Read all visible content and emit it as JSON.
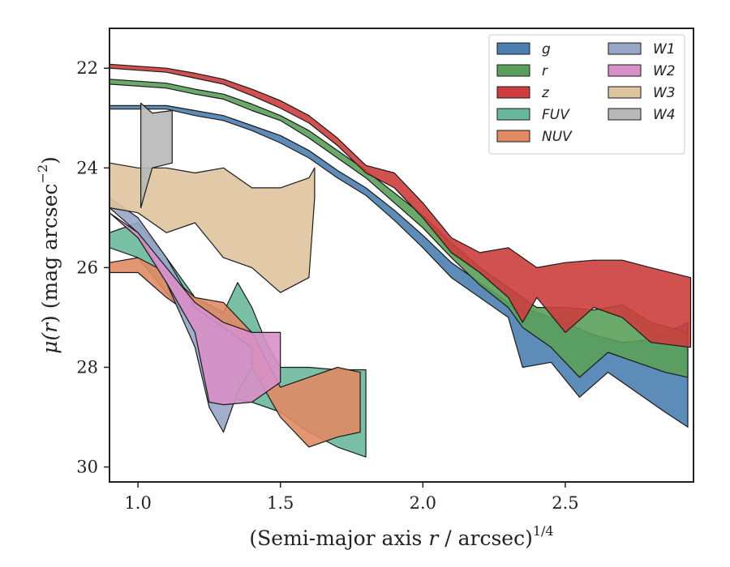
{
  "chart_data": {
    "type": "area",
    "xlabel": "(Semi-major axis r / arcsec)",
    "xlabel_main": "(Semi-major axis ",
    "xlabel_var": "r",
    "xlabel_rest": " / arcsec)",
    "xlabel_exp": "1/4",
    "ylabel_main": "μ(",
    "ylabel_var": "r",
    "ylabel_rest": ") (mag arcsec",
    "ylabel_exp": "−2",
    "ylabel_close": ")",
    "xlim": [
      0.9,
      2.95
    ],
    "ylim": [
      30.3,
      21.2
    ],
    "y_inverted": true,
    "x_ticks": [
      1.0,
      1.5,
      2.0,
      2.5
    ],
    "x_tick_labels": [
      "1.0",
      "1.5",
      "2.0",
      "2.5"
    ],
    "y_ticks": [
      22,
      24,
      26,
      28,
      30
    ],
    "y_tick_labels": [
      "22",
      "24",
      "26",
      "28",
      "30"
    ],
    "grid": false,
    "legend_position": "top-right",
    "legend_columns": 2,
    "series": [
      {
        "name": "g",
        "color": "#4c7fb0",
        "upper": [
          [
            0.9,
            22.75
          ],
          [
            1.1,
            22.75
          ],
          [
            1.2,
            22.85
          ],
          [
            1.3,
            22.95
          ],
          [
            1.4,
            23.15
          ],
          [
            1.5,
            23.35
          ],
          [
            1.6,
            23.65
          ],
          [
            1.7,
            24.05
          ],
          [
            1.8,
            24.4
          ],
          [
            1.9,
            24.85
          ],
          [
            2.0,
            25.35
          ],
          [
            2.1,
            25.9
          ],
          [
            2.2,
            26.3
          ],
          [
            2.3,
            26.7
          ],
          [
            2.4,
            26.9
          ],
          [
            2.5,
            27.1
          ],
          [
            2.6,
            27.35
          ],
          [
            2.7,
            27.5
          ],
          [
            2.8,
            27.45
          ],
          [
            2.93,
            27.1
          ]
        ],
        "lower": [
          [
            0.9,
            22.82
          ],
          [
            1.1,
            22.82
          ],
          [
            1.2,
            22.95
          ],
          [
            1.3,
            23.05
          ],
          [
            1.4,
            23.25
          ],
          [
            1.5,
            23.5
          ],
          [
            1.6,
            23.8
          ],
          [
            1.7,
            24.2
          ],
          [
            1.8,
            24.55
          ],
          [
            1.9,
            25.05
          ],
          [
            2.0,
            25.6
          ],
          [
            2.1,
            26.2
          ],
          [
            2.2,
            26.6
          ],
          [
            2.3,
            27.0
          ],
          [
            2.35,
            28.0
          ],
          [
            2.45,
            27.9
          ],
          [
            2.55,
            28.6
          ],
          [
            2.65,
            28.1
          ],
          [
            2.75,
            28.5
          ],
          [
            2.85,
            28.9
          ],
          [
            2.93,
            29.2
          ]
        ]
      },
      {
        "name": "r",
        "color": "#5aa05a",
        "upper": [
          [
            0.9,
            22.22
          ],
          [
            1.1,
            22.3
          ],
          [
            1.2,
            22.42
          ],
          [
            1.3,
            22.52
          ],
          [
            1.4,
            22.72
          ],
          [
            1.5,
            22.95
          ],
          [
            1.6,
            23.25
          ],
          [
            1.7,
            23.65
          ],
          [
            1.8,
            24.05
          ],
          [
            1.9,
            24.5
          ],
          [
            2.0,
            24.95
          ],
          [
            2.1,
            25.5
          ],
          [
            2.2,
            26.0
          ],
          [
            2.3,
            26.4
          ],
          [
            2.4,
            26.8
          ],
          [
            2.5,
            26.8
          ],
          [
            2.6,
            26.85
          ],
          [
            2.7,
            26.75
          ],
          [
            2.8,
            27.1
          ],
          [
            2.93,
            27.3
          ]
        ],
        "lower": [
          [
            0.9,
            22.32
          ],
          [
            1.1,
            22.4
          ],
          [
            1.2,
            22.52
          ],
          [
            1.3,
            22.62
          ],
          [
            1.4,
            22.85
          ],
          [
            1.5,
            23.05
          ],
          [
            1.6,
            23.4
          ],
          [
            1.7,
            23.8
          ],
          [
            1.8,
            24.2
          ],
          [
            1.9,
            24.7
          ],
          [
            2.0,
            25.2
          ],
          [
            2.1,
            25.8
          ],
          [
            2.2,
            26.35
          ],
          [
            2.3,
            26.8
          ],
          [
            2.35,
            27.2
          ],
          [
            2.45,
            27.6
          ],
          [
            2.55,
            28.2
          ],
          [
            2.65,
            27.7
          ],
          [
            2.75,
            27.9
          ],
          [
            2.85,
            28.1
          ],
          [
            2.93,
            28.2
          ]
        ]
      },
      {
        "name": "z",
        "color": "#cc3e3e",
        "upper": [
          [
            0.9,
            21.92
          ],
          [
            1.1,
            22.0
          ],
          [
            1.2,
            22.1
          ],
          [
            1.3,
            22.22
          ],
          [
            1.4,
            22.42
          ],
          [
            1.5,
            22.65
          ],
          [
            1.6,
            22.95
          ],
          [
            1.7,
            23.4
          ],
          [
            1.8,
            23.95
          ],
          [
            1.9,
            24.1
          ],
          [
            2.0,
            24.7
          ],
          [
            2.1,
            25.4
          ],
          [
            2.2,
            25.7
          ],
          [
            2.3,
            25.6
          ],
          [
            2.4,
            26.0
          ],
          [
            2.5,
            25.9
          ],
          [
            2.6,
            25.85
          ],
          [
            2.7,
            25.85
          ],
          [
            2.8,
            26.0
          ],
          [
            2.94,
            26.2
          ]
        ],
        "lower": [
          [
            0.9,
            22.0
          ],
          [
            1.1,
            22.08
          ],
          [
            1.2,
            22.2
          ],
          [
            1.3,
            22.32
          ],
          [
            1.4,
            22.55
          ],
          [
            1.5,
            22.8
          ],
          [
            1.6,
            23.1
          ],
          [
            1.7,
            23.55
          ],
          [
            1.8,
            24.1
          ],
          [
            1.9,
            24.4
          ],
          [
            2.0,
            25.0
          ],
          [
            2.1,
            25.7
          ],
          [
            2.2,
            26.1
          ],
          [
            2.3,
            26.6
          ],
          [
            2.35,
            27.1
          ],
          [
            2.4,
            26.6
          ],
          [
            2.5,
            27.3
          ],
          [
            2.6,
            26.8
          ],
          [
            2.7,
            27.0
          ],
          [
            2.8,
            27.5
          ],
          [
            2.94,
            27.6
          ]
        ]
      },
      {
        "name": "FUV",
        "color": "#6ab89c",
        "upper": [
          [
            0.9,
            25.3
          ],
          [
            1.0,
            25.1
          ],
          [
            1.1,
            25.8
          ],
          [
            1.2,
            26.6
          ],
          [
            1.3,
            26.9
          ],
          [
            1.35,
            26.3
          ],
          [
            1.4,
            26.8
          ],
          [
            1.45,
            27.5
          ],
          [
            1.5,
            28.0
          ],
          [
            1.6,
            28.0
          ],
          [
            1.7,
            28.05
          ],
          [
            1.8,
            28.05
          ]
        ],
        "lower": [
          [
            0.9,
            25.6
          ],
          [
            1.0,
            25.8
          ],
          [
            1.1,
            26.5
          ],
          [
            1.2,
            27.2
          ],
          [
            1.3,
            28.6
          ],
          [
            1.4,
            28.7
          ],
          [
            1.5,
            28.9
          ],
          [
            1.6,
            29.3
          ],
          [
            1.7,
            29.6
          ],
          [
            1.8,
            29.8
          ]
        ]
      },
      {
        "name": "NUV",
        "color": "#e08a65",
        "upper": [
          [
            0.9,
            25.9
          ],
          [
            1.0,
            25.8
          ],
          [
            1.1,
            26.1
          ],
          [
            1.2,
            26.6
          ],
          [
            1.3,
            26.7
          ],
          [
            1.4,
            27.3
          ],
          [
            1.5,
            28.4
          ],
          [
            1.6,
            28.2
          ],
          [
            1.7,
            28.0
          ],
          [
            1.78,
            28.1
          ]
        ],
        "lower": [
          [
            0.9,
            26.1
          ],
          [
            1.0,
            26.1
          ],
          [
            1.1,
            26.6
          ],
          [
            1.2,
            27.0
          ],
          [
            1.3,
            27.3
          ],
          [
            1.4,
            28.0
          ],
          [
            1.5,
            29.0
          ],
          [
            1.6,
            29.6
          ],
          [
            1.7,
            29.4
          ],
          [
            1.78,
            29.3
          ]
        ]
      },
      {
        "name": "W1",
        "color": "#97a6c8",
        "upper": [
          [
            0.9,
            24.6
          ],
          [
            1.0,
            25.0
          ],
          [
            1.1,
            25.8
          ],
          [
            1.2,
            26.8
          ],
          [
            1.3,
            27.2
          ],
          [
            1.4,
            27.6
          ]
        ],
        "lower": [
          [
            0.9,
            24.8
          ],
          [
            1.0,
            25.3
          ],
          [
            1.1,
            26.3
          ],
          [
            1.2,
            27.6
          ],
          [
            1.25,
            28.8
          ],
          [
            1.3,
            29.3
          ],
          [
            1.35,
            28.5
          ],
          [
            1.4,
            28.0
          ]
        ]
      },
      {
        "name": "W2",
        "color": "#d890c8",
        "upper": [
          [
            0.9,
            24.9
          ],
          [
            1.0,
            25.3
          ],
          [
            1.1,
            26.0
          ],
          [
            1.2,
            26.7
          ],
          [
            1.3,
            27.1
          ],
          [
            1.4,
            27.3
          ],
          [
            1.5,
            27.3
          ]
        ],
        "lower": [
          [
            0.9,
            24.9
          ],
          [
            1.0,
            25.4
          ],
          [
            1.1,
            26.3
          ],
          [
            1.2,
            27.3
          ],
          [
            1.25,
            28.7
          ],
          [
            1.3,
            28.75
          ],
          [
            1.4,
            28.7
          ],
          [
            1.45,
            28.5
          ],
          [
            1.5,
            28.3
          ]
        ]
      },
      {
        "name": "W3",
        "color": "#dfc4a0",
        "upper": [
          [
            0.9,
            23.9
          ],
          [
            1.0,
            24.0
          ],
          [
            1.1,
            24.0
          ],
          [
            1.2,
            24.1
          ],
          [
            1.3,
            24.0
          ],
          [
            1.4,
            24.4
          ],
          [
            1.5,
            24.4
          ],
          [
            1.6,
            24.2
          ],
          [
            1.62,
            24.0
          ]
        ],
        "lower": [
          [
            0.9,
            24.8
          ],
          [
            1.0,
            24.9
          ],
          [
            1.1,
            25.3
          ],
          [
            1.2,
            25.1
          ],
          [
            1.3,
            25.8
          ],
          [
            1.4,
            26.0
          ],
          [
            1.5,
            26.5
          ],
          [
            1.6,
            26.2
          ],
          [
            1.62,
            24.6
          ]
        ]
      },
      {
        "name": "W4",
        "color": "#b8b8b8",
        "upper": [
          [
            1.01,
            22.7
          ],
          [
            1.05,
            22.9
          ],
          [
            1.12,
            22.85
          ]
        ],
        "lower": [
          [
            1.01,
            24.8
          ],
          [
            1.05,
            24.0
          ],
          [
            1.12,
            23.9
          ]
        ]
      }
    ]
  }
}
